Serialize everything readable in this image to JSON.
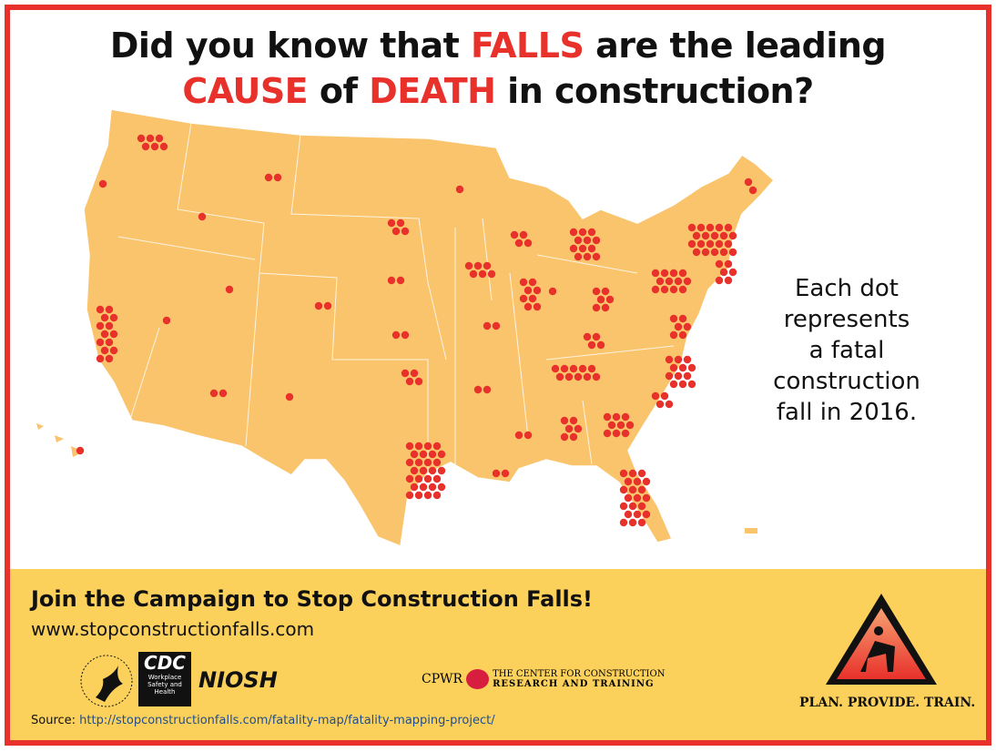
{
  "title": {
    "l1a": "Did you know that ",
    "l1b": "FALLS",
    "l1c": " are the leading",
    "l2a": "CAUSE",
    "l2b": " of ",
    "l2c": "DEATH",
    "l2d": " in construction?"
  },
  "legend": {
    "lines": [
      "Each dot",
      "represents",
      "a fatal",
      "construction",
      "fall in 2016."
    ]
  },
  "footer": {
    "cta": "Join the Campaign to Stop Construction Falls!",
    "url": "www.stopconstructionfalls.com",
    "source_label": "Source: ",
    "source_url": "http://stopconstructionfalls.com/fatality-map/fatality-mapping-project/",
    "tagline": "PLAN. PROVIDE. TRAIN."
  },
  "logos": {
    "cdc": "CDC",
    "cdc_sub": "Workplace Safety and Health",
    "niosh": "NIOSH",
    "cpwr": "CPWR",
    "cpwr_line1": "THE CENTER FOR CONSTRUCTION",
    "cpwr_line2": "RESEARCH AND TRAINING"
  },
  "colors": {
    "border": "#e8312b",
    "map": "#f9c46b",
    "dot": "#e8312b",
    "band": "#fbd15b"
  }
}
